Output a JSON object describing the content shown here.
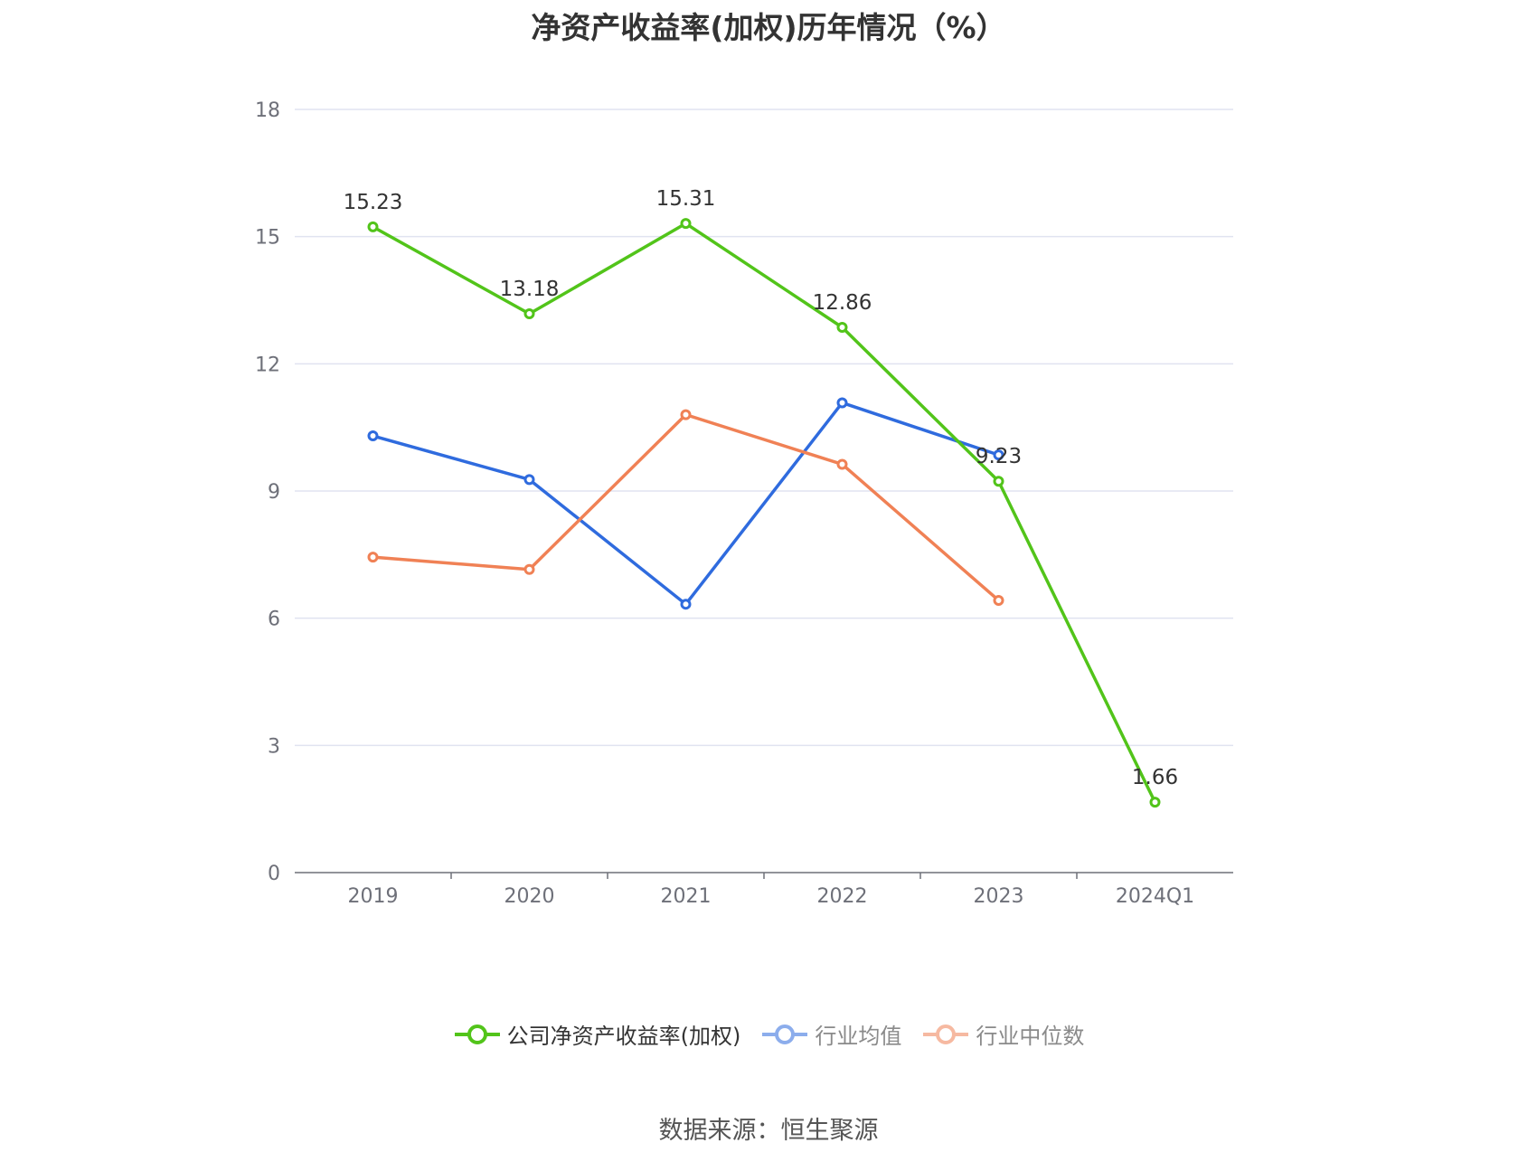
{
  "title": "净资产收益率(加权)历年情况（%）",
  "source": "数据来源：恒生聚源",
  "chart_data": {
    "type": "line",
    "categories": [
      "2019",
      "2020",
      "2021",
      "2022",
      "2023",
      "2024Q1"
    ],
    "yticks": [
      "0",
      "3",
      "6",
      "9",
      "12",
      "15",
      "18"
    ],
    "ylim": [
      0,
      18
    ],
    "grid": true,
    "legend_position": "bottom",
    "series": [
      {
        "name": "公司净资产收益率(加权)",
        "color": "#52c41a",
        "values": [
          15.23,
          13.18,
          15.31,
          12.86,
          9.23,
          1.66
        ],
        "labels": [
          "15.23",
          "13.18",
          "15.31",
          "12.86",
          "9.23",
          "1.66"
        ]
      },
      {
        "name": "行业均值",
        "color": "#2f6bde",
        "values": [
          10.3,
          9.27,
          6.33,
          11.08,
          9.85,
          null
        ]
      },
      {
        "name": "行业中位数",
        "color": "#f08155",
        "values": [
          7.44,
          7.15,
          10.8,
          9.63,
          6.42,
          null
        ]
      }
    ]
  }
}
